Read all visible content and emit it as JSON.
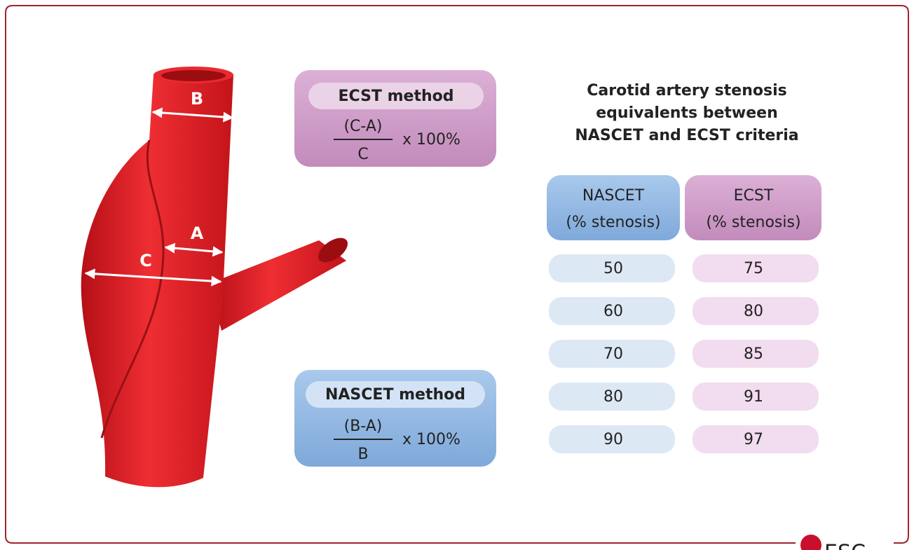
{
  "diagram": {
    "labels": {
      "a": "A",
      "b": "B",
      "c": "C"
    },
    "ecst_box": {
      "title": "ECST method",
      "numerator": "(C-A)",
      "denominator": "C",
      "multiplier": "x 100%"
    },
    "nascet_box": {
      "title": "NASCET method",
      "numerator": "(B-A)",
      "denominator": "B",
      "multiplier": "x 100%"
    },
    "table": {
      "title": [
        "Carotid artery stenosis",
        "equivalents between",
        "NASCET and ECST criteria"
      ],
      "headers": [
        {
          "name": "NASCET",
          "unit": "(% stenosis)"
        },
        {
          "name": "ECST",
          "unit": "(% stenosis)"
        }
      ],
      "rows": [
        [
          50,
          75
        ],
        [
          60,
          80
        ],
        [
          70,
          85
        ],
        [
          80,
          91
        ],
        [
          90,
          97
        ]
      ]
    },
    "logo": "ESC"
  }
}
